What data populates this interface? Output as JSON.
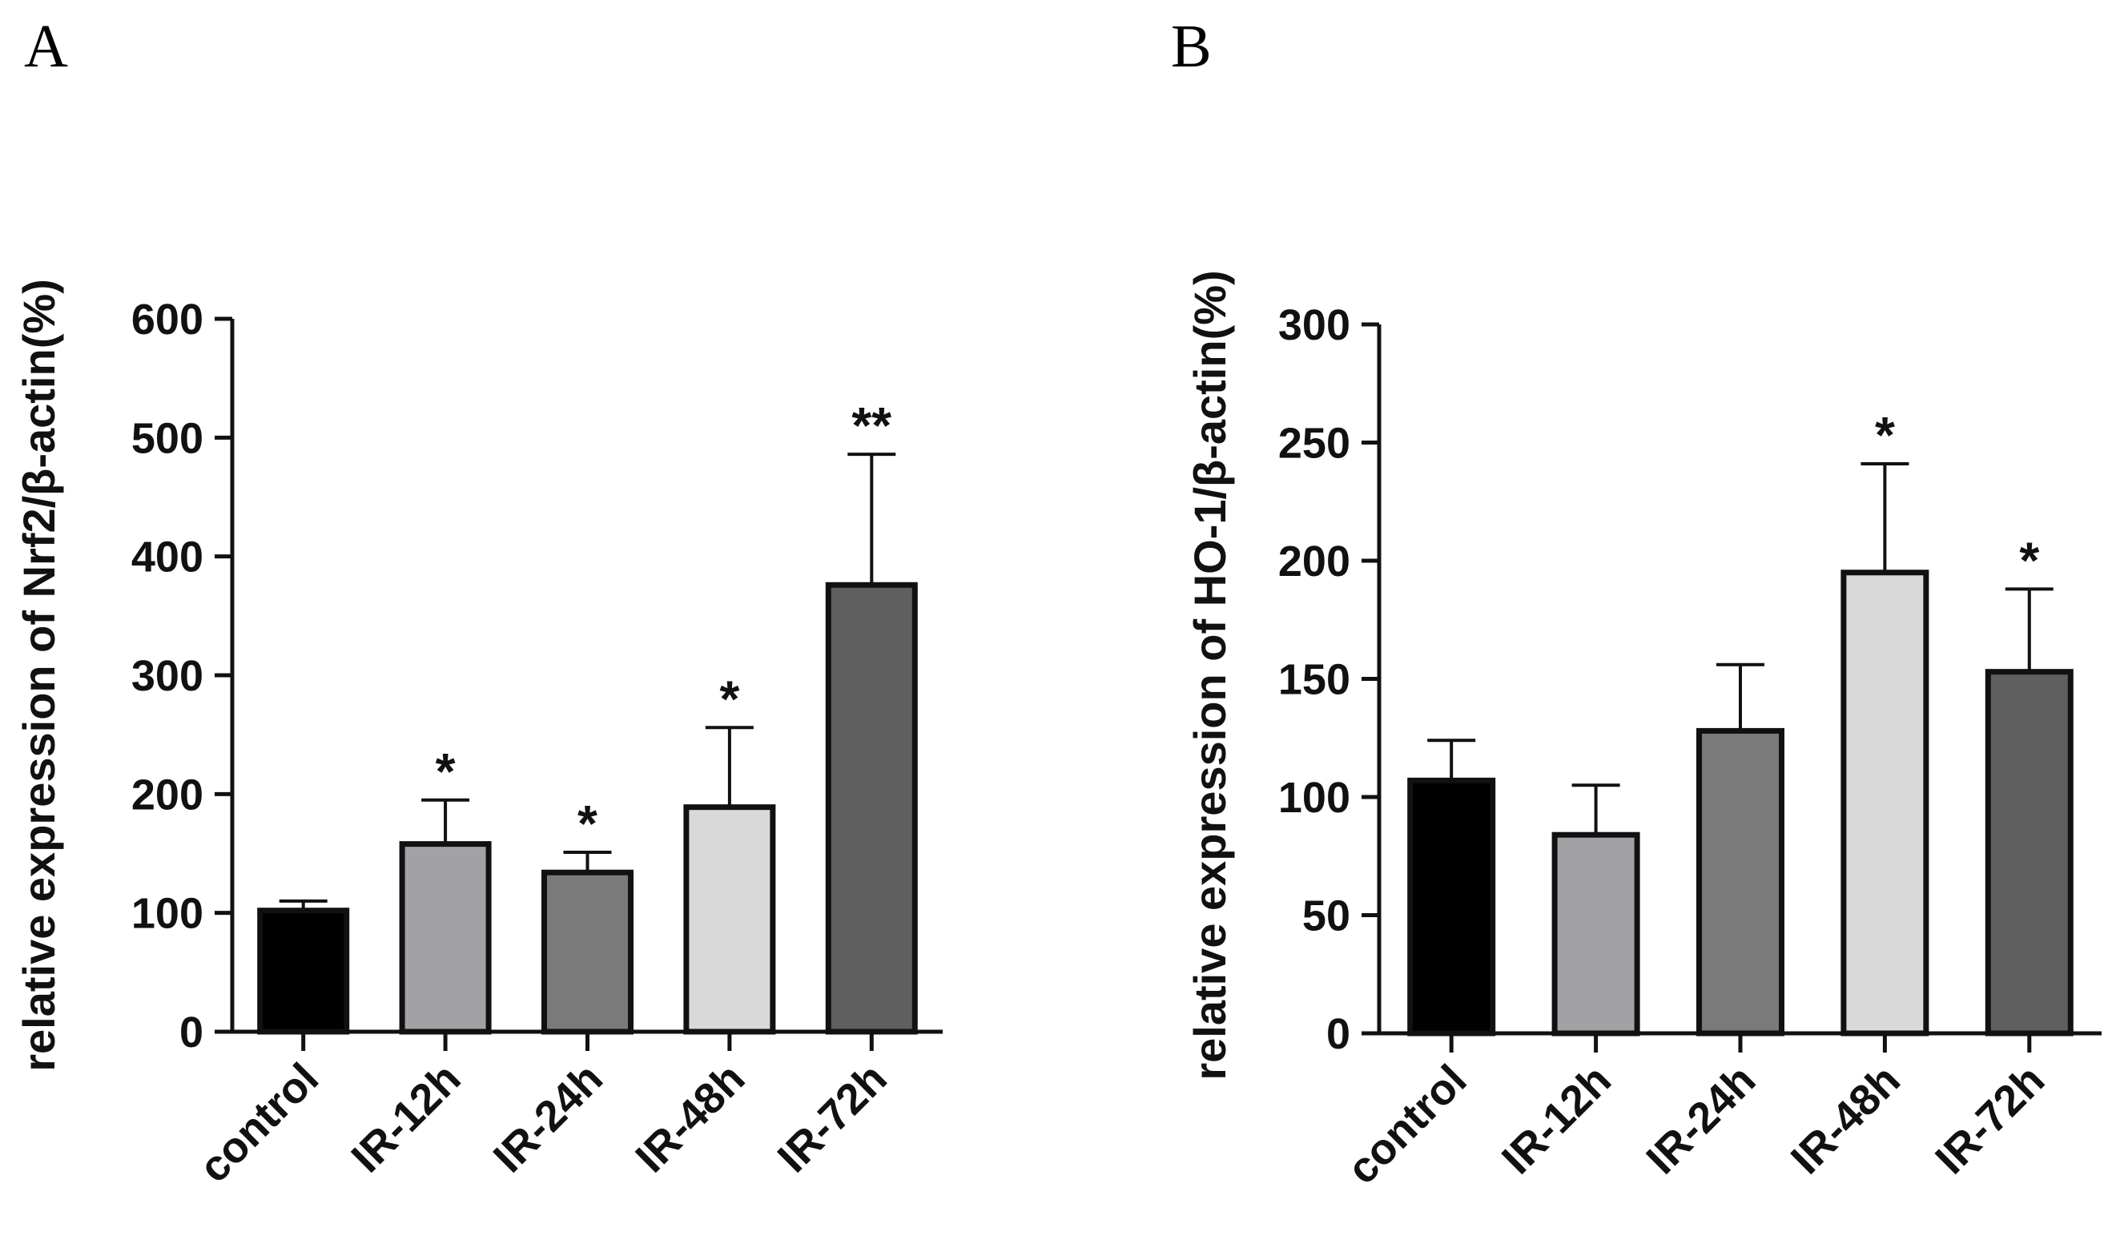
{
  "chart_data": [
    {
      "panel": "A",
      "type": "bar",
      "title": "",
      "xlabel": "",
      "ylabel": "relative expression of Nrf2/β-actin(%)",
      "ylim": [
        0,
        600
      ],
      "yticks": [
        0,
        100,
        200,
        300,
        400,
        500,
        600
      ],
      "categories": [
        "control",
        "IR-12h",
        "IR-24h",
        "IR-48h",
        "IR-72h"
      ],
      "values": [
        102,
        158,
        134,
        189,
        376
      ],
      "errors": [
        8,
        37,
        17,
        67,
        110
      ],
      "significance": [
        "",
        "*",
        "*",
        "*",
        "**"
      ],
      "colors": [
        "#000000",
        "#a2a2a6",
        "#7a7a7a",
        "#d9d9d9",
        "#5f5f5f"
      ]
    },
    {
      "panel": "B",
      "type": "bar",
      "title": "",
      "xlabel": "",
      "ylabel": "relative expression of HO-1/β-actin(%)",
      "ylim": [
        0,
        300
      ],
      "yticks": [
        0,
        50,
        100,
        150,
        200,
        250,
        300
      ],
      "categories": [
        "control",
        "IR-12h",
        "IR-24h",
        "IR-48h",
        "IR-72h"
      ],
      "values": [
        107,
        84,
        128,
        195,
        153
      ],
      "errors": [
        17,
        21,
        28,
        46,
        35
      ],
      "significance": [
        "",
        "",
        "",
        "*",
        "*"
      ],
      "colors": [
        "#000000",
        "#a2a2a6",
        "#7a7a7a",
        "#d9d9d9",
        "#5f5f5f"
      ]
    }
  ]
}
